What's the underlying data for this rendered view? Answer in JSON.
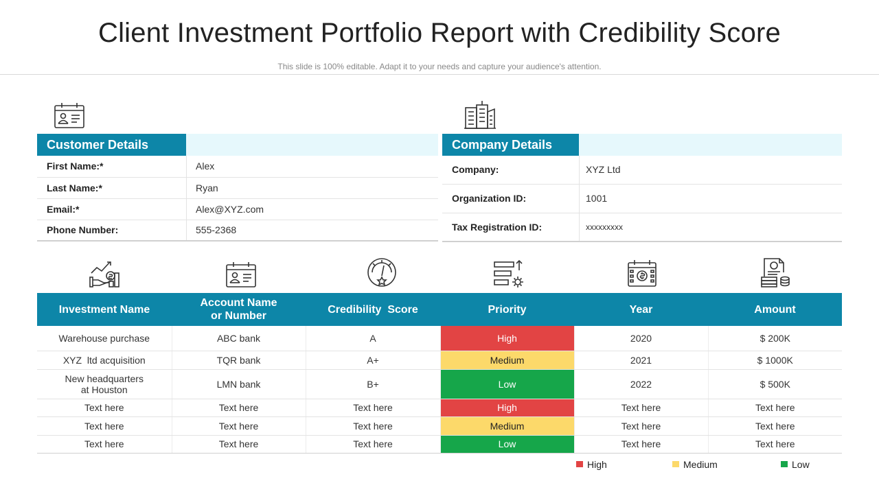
{
  "slide": {
    "title": "Client Investment Portfolio Report with Credibility Score",
    "subtitle": "This slide is 100% editable. Adapt it to your needs and capture your audience's attention."
  },
  "customer": {
    "heading": "Customer Details",
    "rows": [
      {
        "label": "First Name:*",
        "value": "Alex"
      },
      {
        "label": "Last Name:*",
        "value": "Ryan"
      },
      {
        "label": "Email:*",
        "value": "Alex@XYZ.com"
      },
      {
        "label": "Phone Number:",
        "value": "555-2368"
      }
    ]
  },
  "company": {
    "heading": "Company Details",
    "rows": [
      {
        "label": "Company:",
        "value": "XYZ Ltd"
      },
      {
        "label": "Organization ID:",
        "value": "1001"
      },
      {
        "label": "Tax Registration ID:",
        "value": "xxxxxxxxx"
      }
    ]
  },
  "icons": {
    "customer": "id-card-icon",
    "company": "office-buildings-icon",
    "columns": [
      "investment-growth-icon",
      "account-card-icon",
      "gauge-star-icon",
      "priority-bars-icon",
      "calendar-dollar-icon",
      "invoice-money-icon"
    ]
  },
  "investments": {
    "columns": [
      "Investment Name",
      "Account Name\nor Number",
      "Credibility  Score",
      "Priority",
      "Year",
      "Amount"
    ],
    "rows": [
      {
        "name": "Warehouse purchase",
        "account": "ABC bank",
        "score": "A",
        "priority": "High",
        "year": "2020",
        "amount": "$ 200K"
      },
      {
        "name": "XYZ  ltd acquisition",
        "account": "TQR bank",
        "score": "A+",
        "priority": "Medium",
        "year": "2021",
        "amount": "$ 1000K"
      },
      {
        "name": "New  headquarters\nat Houston",
        "account": "LMN bank",
        "score": "B+",
        "priority": "Low",
        "year": "2022",
        "amount": "$ 500K"
      },
      {
        "name": "Text here",
        "account": "Text here",
        "score": "Text here",
        "priority": "High",
        "year": "Text here",
        "amount": "Text here"
      },
      {
        "name": "Text here",
        "account": "Text here",
        "score": "Text here",
        "priority": "Medium",
        "year": "Text here",
        "amount": "Text here"
      },
      {
        "name": "Text here",
        "account": "Text here",
        "score": "Text here",
        "priority": "Low",
        "year": "Text here",
        "amount": "Text here"
      }
    ]
  },
  "legend": [
    {
      "label": "High",
      "color": "#e24444"
    },
    {
      "label": "Medium",
      "color": "#fcd96a"
    },
    {
      "label": "Low",
      "color": "#16a64a"
    }
  ],
  "colors": {
    "header": "#0d86a8",
    "header_tint": "#e6f8fc"
  }
}
